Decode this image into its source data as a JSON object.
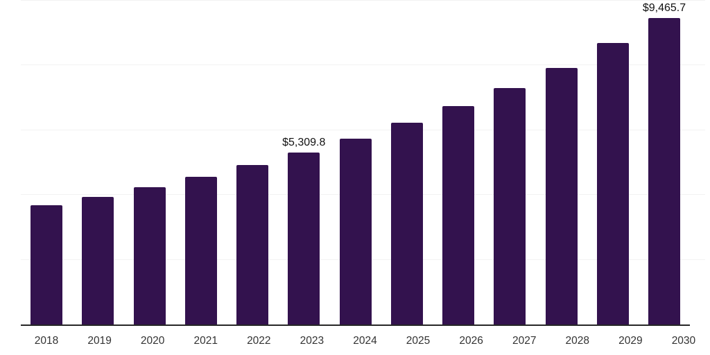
{
  "chart_data": {
    "type": "bar",
    "title": "",
    "xlabel": "",
    "ylabel": "",
    "categories": [
      "2018",
      "2019",
      "2020",
      "2021",
      "2022",
      "2023",
      "2024",
      "2025",
      "2026",
      "2027",
      "2028",
      "2029",
      "2030"
    ],
    "values": [
      3680,
      3945,
      4245,
      4565,
      4925,
      5309.8,
      5735,
      6225,
      6740,
      7310,
      7930,
      8700,
      9465.7
    ],
    "data_labels": {
      "2023": "$5,309.8",
      "2030": "$9,465.7"
    },
    "ylim": [
      0,
      10000
    ],
    "y_gridlines": [
      2000,
      4000,
      6000,
      8000,
      10000
    ],
    "y_axis_labels_visible": false,
    "grid": "horizontal",
    "legend": "none",
    "colors": {
      "bar": "#33124e",
      "axis_line": "#262626",
      "gridline": "#f2f2f2",
      "tick_label": "#333333",
      "data_label": "#111111",
      "background": "#ffffff"
    }
  }
}
